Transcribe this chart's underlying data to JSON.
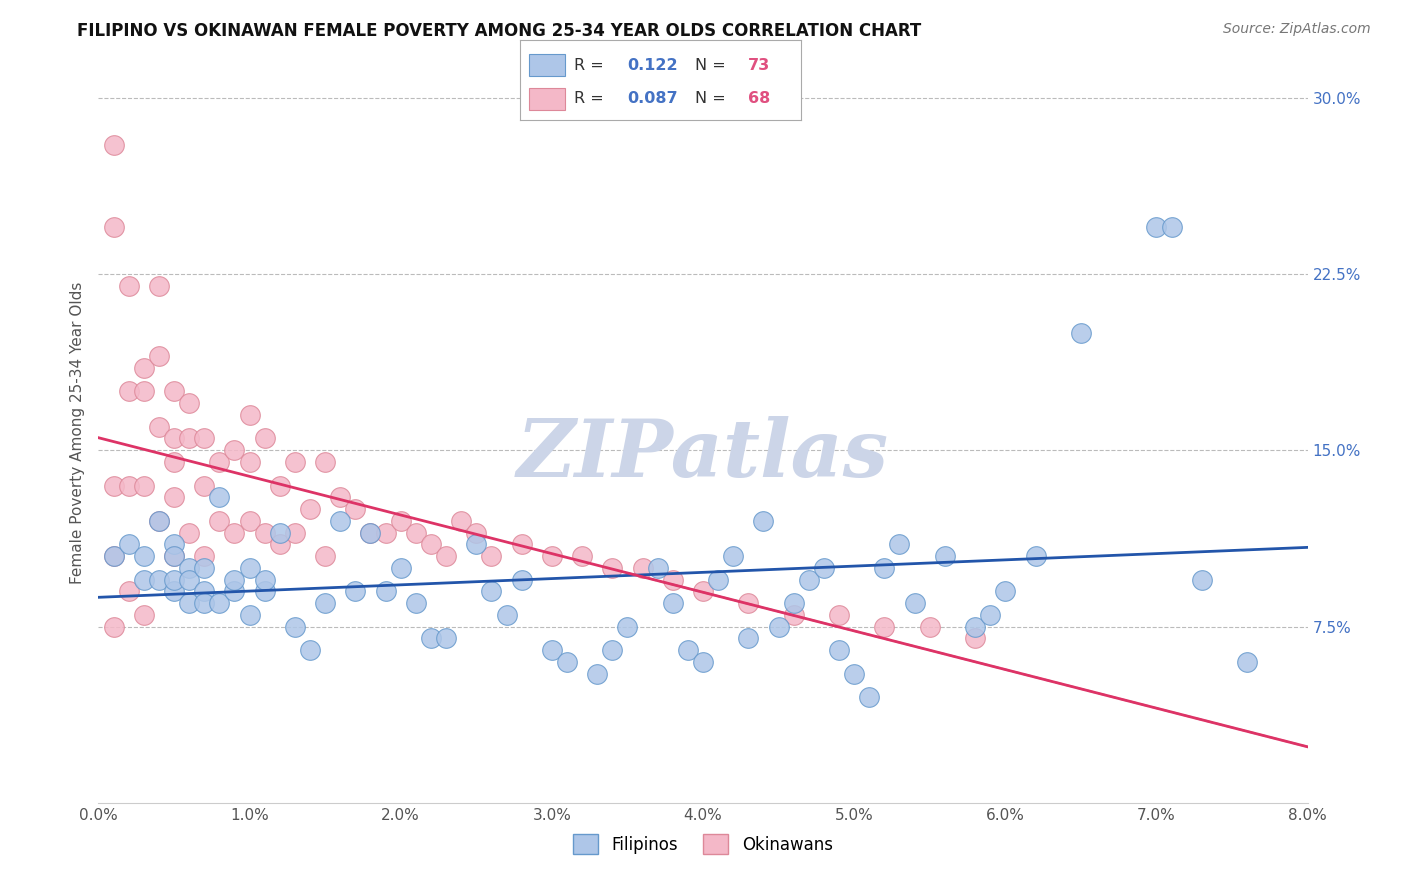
{
  "title": "FILIPINO VS OKINAWAN FEMALE POVERTY AMONG 25-34 YEAR OLDS CORRELATION CHART",
  "source": "Source: ZipAtlas.com",
  "ylabel": "Female Poverty Among 25-34 Year Olds",
  "xlim": [
    0.0,
    0.08
  ],
  "ylim": [
    0.0,
    0.315
  ],
  "r_filipino": 0.122,
  "n_filipino": 73,
  "r_okinawan": 0.087,
  "n_okinawan": 68,
  "color_filipino": "#aec6e8",
  "color_okinawan": "#f4b8c8",
  "color_edge_filipino": "#6699cc",
  "color_edge_okinawan": "#dd8899",
  "color_line_filipino": "#2255aa",
  "color_line_okinawan": "#dd3366",
  "watermark": "ZIPatlas",
  "watermark_color": "#ccd5e8",
  "background_color": "#ffffff",
  "grid_color": "#bbbbbb",
  "title_color": "#111111",
  "axis_label_color": "#555555",
  "filipino_x": [
    0.001,
    0.002,
    0.003,
    0.003,
    0.004,
    0.004,
    0.005,
    0.005,
    0.005,
    0.005,
    0.006,
    0.006,
    0.006,
    0.007,
    0.007,
    0.007,
    0.008,
    0.008,
    0.009,
    0.009,
    0.01,
    0.01,
    0.011,
    0.011,
    0.012,
    0.013,
    0.014,
    0.015,
    0.016,
    0.017,
    0.018,
    0.019,
    0.02,
    0.021,
    0.022,
    0.023,
    0.025,
    0.026,
    0.027,
    0.028,
    0.03,
    0.031,
    0.033,
    0.034,
    0.035,
    0.037,
    0.038,
    0.039,
    0.04,
    0.041,
    0.042,
    0.043,
    0.044,
    0.045,
    0.046,
    0.047,
    0.048,
    0.049,
    0.05,
    0.051,
    0.052,
    0.053,
    0.054,
    0.056,
    0.058,
    0.059,
    0.06,
    0.062,
    0.065,
    0.07,
    0.071,
    0.073,
    0.076
  ],
  "filipino_y": [
    0.105,
    0.11,
    0.095,
    0.105,
    0.12,
    0.095,
    0.11,
    0.09,
    0.095,
    0.105,
    0.1,
    0.085,
    0.095,
    0.09,
    0.085,
    0.1,
    0.13,
    0.085,
    0.09,
    0.095,
    0.1,
    0.08,
    0.09,
    0.095,
    0.115,
    0.075,
    0.065,
    0.085,
    0.12,
    0.09,
    0.115,
    0.09,
    0.1,
    0.085,
    0.07,
    0.07,
    0.11,
    0.09,
    0.08,
    0.095,
    0.065,
    0.06,
    0.055,
    0.065,
    0.075,
    0.1,
    0.085,
    0.065,
    0.06,
    0.095,
    0.105,
    0.07,
    0.12,
    0.075,
    0.085,
    0.095,
    0.1,
    0.065,
    0.055,
    0.045,
    0.1,
    0.11,
    0.085,
    0.105,
    0.075,
    0.08,
    0.09,
    0.105,
    0.2,
    0.245,
    0.245,
    0.095,
    0.06
  ],
  "okinawan_x": [
    0.001,
    0.001,
    0.001,
    0.001,
    0.001,
    0.002,
    0.002,
    0.002,
    0.002,
    0.003,
    0.003,
    0.003,
    0.003,
    0.004,
    0.004,
    0.004,
    0.004,
    0.005,
    0.005,
    0.005,
    0.005,
    0.005,
    0.006,
    0.006,
    0.006,
    0.007,
    0.007,
    0.007,
    0.008,
    0.008,
    0.009,
    0.009,
    0.01,
    0.01,
    0.01,
    0.011,
    0.011,
    0.012,
    0.012,
    0.013,
    0.013,
    0.014,
    0.015,
    0.015,
    0.016,
    0.017,
    0.018,
    0.019,
    0.02,
    0.021,
    0.022,
    0.023,
    0.024,
    0.025,
    0.026,
    0.028,
    0.03,
    0.032,
    0.034,
    0.036,
    0.038,
    0.04,
    0.043,
    0.046,
    0.049,
    0.052,
    0.055,
    0.058
  ],
  "okinawan_y": [
    0.28,
    0.245,
    0.135,
    0.105,
    0.075,
    0.22,
    0.175,
    0.135,
    0.09,
    0.185,
    0.175,
    0.135,
    0.08,
    0.22,
    0.19,
    0.16,
    0.12,
    0.175,
    0.155,
    0.145,
    0.13,
    0.105,
    0.17,
    0.155,
    0.115,
    0.155,
    0.135,
    0.105,
    0.145,
    0.12,
    0.15,
    0.115,
    0.165,
    0.145,
    0.12,
    0.155,
    0.115,
    0.135,
    0.11,
    0.145,
    0.115,
    0.125,
    0.145,
    0.105,
    0.13,
    0.125,
    0.115,
    0.115,
    0.12,
    0.115,
    0.11,
    0.105,
    0.12,
    0.115,
    0.105,
    0.11,
    0.105,
    0.105,
    0.1,
    0.1,
    0.095,
    0.09,
    0.085,
    0.08,
    0.08,
    0.075,
    0.075,
    0.07
  ]
}
